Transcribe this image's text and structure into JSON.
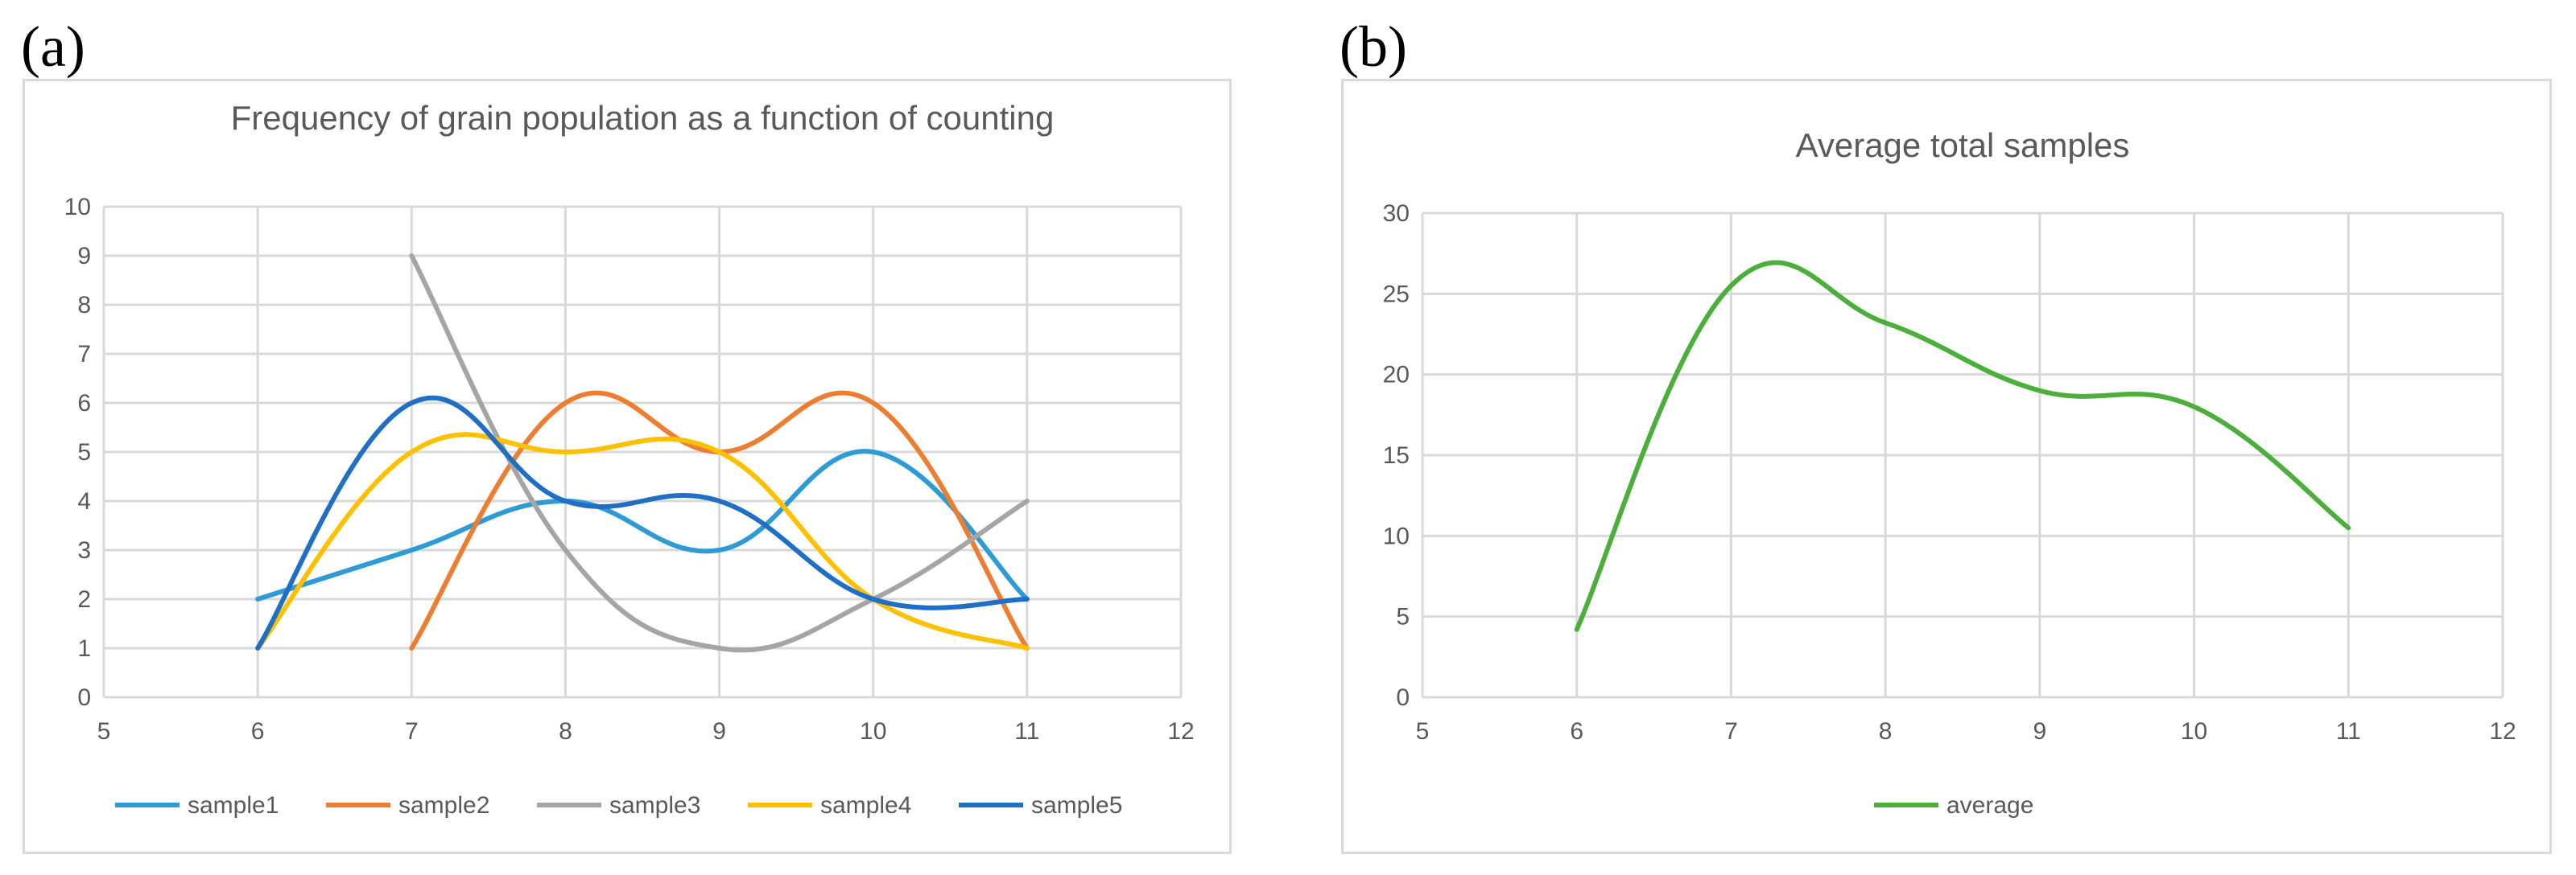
{
  "panels": {
    "a_label": "(a)",
    "b_label": "(b)"
  },
  "chart_data": [
    {
      "type": "line",
      "smooth": true,
      "title": "Frequency of grain population as a function of counting",
      "xlabel": "",
      "ylabel": "",
      "xlim": [
        5,
        12
      ],
      "ylim": [
        0,
        10
      ],
      "x_ticks": [
        5,
        6,
        7,
        8,
        9,
        10,
        11,
        12
      ],
      "y_ticks": [
        0,
        1,
        2,
        3,
        4,
        5,
        6,
        7,
        8,
        9,
        10
      ],
      "grid": true,
      "legend": "bottom",
      "series": [
        {
          "name": "sample1",
          "color": "#2e9ad6",
          "points": [
            [
              6,
              2
            ],
            [
              7,
              3
            ],
            [
              8,
              4
            ],
            [
              9,
              3
            ],
            [
              10,
              5
            ],
            [
              11,
              2
            ]
          ]
        },
        {
          "name": "sample2",
          "color": "#ed7d31",
          "points": [
            [
              7,
              1
            ],
            [
              8,
              6
            ],
            [
              9,
              5
            ],
            [
              10,
              6
            ],
            [
              11,
              1
            ]
          ]
        },
        {
          "name": "sample3",
          "color": "#a5a5a5",
          "points": [
            [
              7,
              9
            ],
            [
              8,
              3
            ],
            [
              9,
              1
            ],
            [
              10,
              2
            ],
            [
              11,
              4
            ]
          ]
        },
        {
          "name": "sample4",
          "color": "#ffc000",
          "points": [
            [
              6,
              1
            ],
            [
              7,
              5
            ],
            [
              8,
              5
            ],
            [
              9,
              5
            ],
            [
              10,
              2
            ],
            [
              11,
              1
            ]
          ]
        },
        {
          "name": "sample5",
          "color": "#1f6fc5",
          "points": [
            [
              6,
              1
            ],
            [
              7,
              6
            ],
            [
              8,
              4
            ],
            [
              9,
              4
            ],
            [
              10,
              2
            ],
            [
              11,
              2
            ]
          ]
        }
      ]
    },
    {
      "type": "line",
      "smooth": true,
      "title": "Average total samples",
      "xlabel": "",
      "ylabel": "",
      "xlim": [
        5,
        12
      ],
      "ylim": [
        0,
        30
      ],
      "x_ticks": [
        5,
        6,
        7,
        8,
        9,
        10,
        11,
        12
      ],
      "y_ticks": [
        0,
        5,
        10,
        15,
        20,
        25,
        30
      ],
      "grid": true,
      "legend": "bottom",
      "series": [
        {
          "name": "average",
          "color": "#4caf3c",
          "points": [
            [
              6,
              4.2
            ],
            [
              7,
              25.5
            ],
            [
              8,
              23.2
            ],
            [
              9,
              19
            ],
            [
              10,
              18
            ],
            [
              11,
              10.5
            ]
          ]
        }
      ]
    }
  ]
}
